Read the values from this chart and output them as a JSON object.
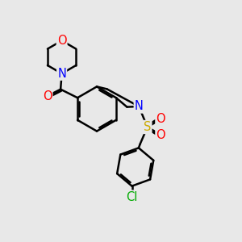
{
  "background_color": "#e8e8e8",
  "bond_color": "#000000",
  "bond_width": 1.8,
  "atom_colors": {
    "O": "#ff0000",
    "N": "#0000ff",
    "S": "#ccaa00",
    "Cl": "#00aa00",
    "C": "#000000"
  },
  "fs": 10.5
}
